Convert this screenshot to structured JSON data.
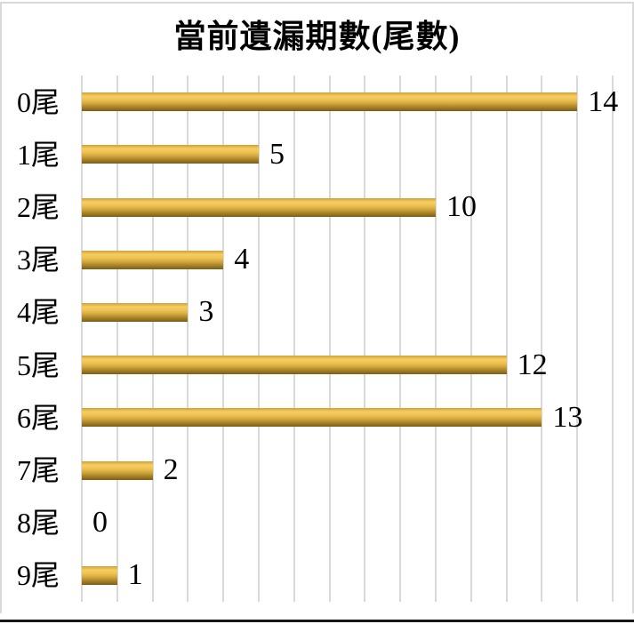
{
  "title": "當前遺漏期數(尾數)",
  "chart_data": {
    "type": "bar",
    "orientation": "horizontal",
    "title": "當前遺漏期數(尾數)",
    "categories": [
      "0尾",
      "1尾",
      "2尾",
      "3尾",
      "4尾",
      "5尾",
      "6尾",
      "7尾",
      "8尾",
      "9尾"
    ],
    "values": [
      14,
      5,
      10,
      4,
      3,
      12,
      13,
      2,
      0,
      1
    ],
    "xlabel": "",
    "ylabel": "",
    "xlim": [
      0,
      15
    ],
    "gridline_interval": 1,
    "grid": true,
    "legend": false,
    "data_labels": true
  },
  "colors": {
    "background": "#FFFFFF",
    "gridline": "#D9D9D9",
    "border": "#D9D9D9",
    "text": "#000000",
    "bottom_line": "#161616",
    "bar_top": "#F6CD62",
    "bar_mid": "#E8BC48",
    "bar_bottom": "#7B5E15"
  }
}
